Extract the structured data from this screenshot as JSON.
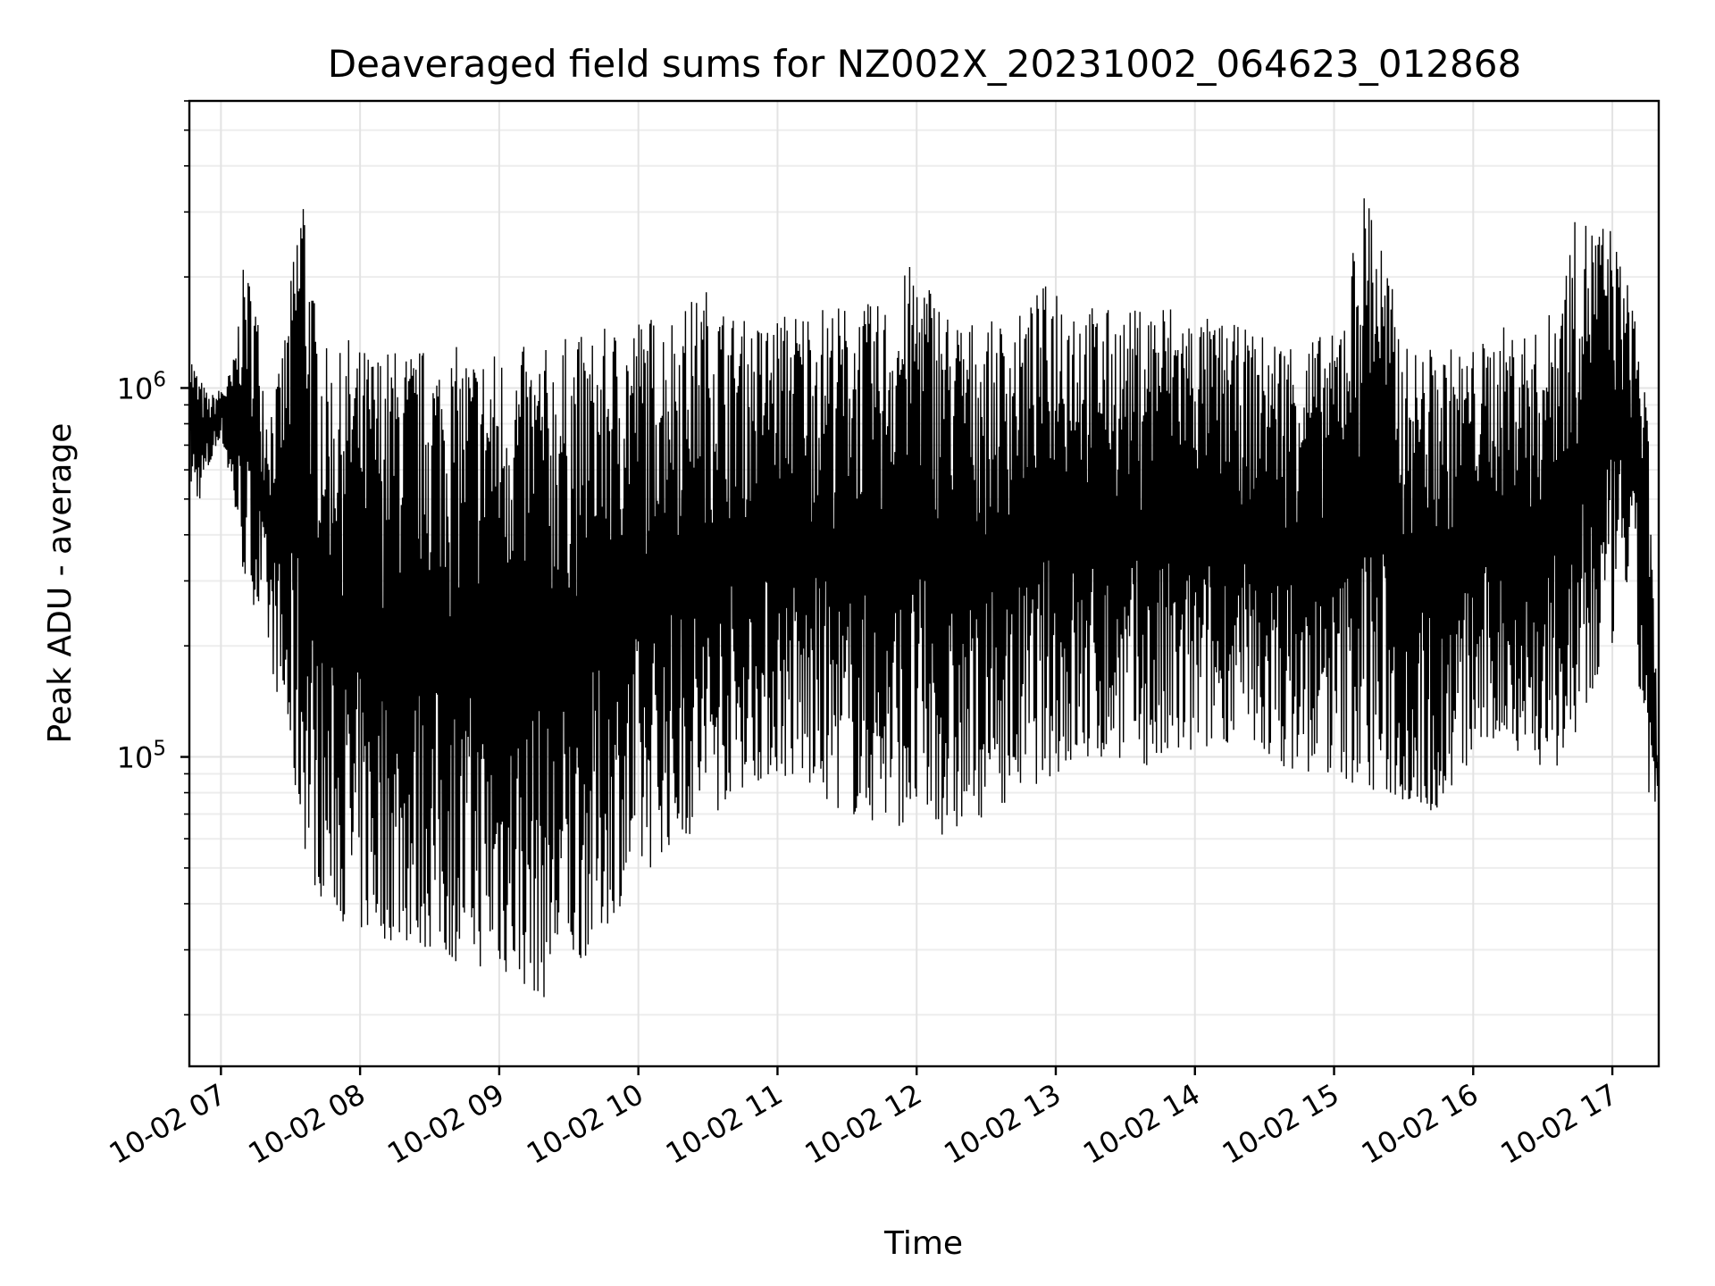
{
  "chart_data": {
    "type": "line",
    "title": "Deaveraged field sums for NZ002X_20231002_064623_012868",
    "xlabel": "Time",
    "ylabel": "Peak ADU - average",
    "y_scale": "log",
    "ylim": [
      14500,
      6000000
    ],
    "xlim": [
      "2023-10-02T06:46:23",
      "2023-10-02T17:20:00"
    ],
    "x_ticks": [
      "10-02 07",
      "10-02 08",
      "10-02 09",
      "10-02 10",
      "10-02 11",
      "10-02 12",
      "10-02 13",
      "10-02 14",
      "10-02 15",
      "10-02 16",
      "10-02 17"
    ],
    "y_ticks": [
      {
        "value": 100000,
        "base": "10",
        "exp": "5"
      },
      {
        "value": 1000000,
        "base": "10",
        "exp": "6"
      }
    ],
    "grid": true,
    "legend": "none",
    "series_color": "#000000",
    "series": [
      {
        "x": [
          "2023-10-02T06:46:23",
          "2023-10-02T06:50:00",
          "2023-10-02T06:55:00",
          "2023-10-02T07:00:00",
          "2023-10-02T07:05:00",
          "2023-10-02T07:10:00",
          "2023-10-02T07:15:00",
          "2023-10-02T07:20:00",
          "2023-10-02T07:25:00",
          "2023-10-02T07:30:00",
          "2023-10-02T07:35:00",
          "2023-10-02T07:40:00",
          "2023-10-02T07:45:00",
          "2023-10-02T07:50:00",
          "2023-10-02T07:55:00",
          "2023-10-02T08:00:00",
          "2023-10-02T08:10:00",
          "2023-10-02T08:20:00",
          "2023-10-02T08:30:00",
          "2023-10-02T08:40:00",
          "2023-10-02T08:50:00",
          "2023-10-02T09:00:00",
          "2023-10-02T09:10:00",
          "2023-10-02T09:20:00",
          "2023-10-02T09:30:00",
          "2023-10-02T09:40:00",
          "2023-10-02T09:50:00",
          "2023-10-02T10:00:00",
          "2023-10-02T10:10:00",
          "2023-10-02T10:20:00",
          "2023-10-02T10:30:00",
          "2023-10-02T10:40:00",
          "2023-10-02T10:50:00",
          "2023-10-02T11:00:00",
          "2023-10-02T11:15:00",
          "2023-10-02T11:30:00",
          "2023-10-02T11:45:00",
          "2023-10-02T12:00:00",
          "2023-10-02T12:15:00",
          "2023-10-02T12:30:00",
          "2023-10-02T12:45:00",
          "2023-10-02T13:00:00",
          "2023-10-02T13:15:00",
          "2023-10-02T13:30:00",
          "2023-10-02T13:45:00",
          "2023-10-02T14:00:00",
          "2023-10-02T14:15:00",
          "2023-10-02T14:30:00",
          "2023-10-02T14:45:00",
          "2023-10-02T15:00:00",
          "2023-10-02T15:15:00",
          "2023-10-02T15:30:00",
          "2023-10-02T15:45:00",
          "2023-10-02T16:00:00",
          "2023-10-02T16:15:00",
          "2023-10-02T16:30:00",
          "2023-10-02T16:45:00",
          "2023-10-02T17:00:00",
          "2023-10-02T17:05:00",
          "2023-10-02T17:10:00",
          "2023-10-02T17:15:00",
          "2023-10-02T17:20:00"
        ],
        "hi": [
          1300000,
          1100000,
          950000,
          1000000,
          1150000,
          2200000,
          1800000,
          900000,
          1100000,
          1900000,
          4500000,
          1800000,
          1300000,
          1200000,
          1400000,
          1300000,
          1300000,
          1300000,
          1300000,
          1300000,
          1300000,
          1300000,
          1300000,
          1300000,
          1400000,
          1400000,
          1500000,
          1600000,
          1600000,
          1700000,
          1900000,
          1600000,
          1500000,
          1600000,
          1700000,
          1700000,
          1700000,
          2300000,
          1600000,
          1500000,
          1600000,
          2100000,
          1700000,
          1600000,
          1800000,
          1600000,
          1500000,
          1400000,
          1400000,
          1400000,
          4000000,
          1300000,
          1300000,
          1300000,
          1500000,
          1400000,
          3000000,
          2800000,
          2000000,
          1800000,
          900000,
          100000
        ],
        "lo": [
          550000,
          480000,
          600000,
          750000,
          500000,
          300000,
          250000,
          200000,
          140000,
          90000,
          60000,
          45000,
          40000,
          38000,
          34000,
          33000,
          32000,
          31000,
          30000,
          28000,
          27000,
          26000,
          24000,
          22000,
          26000,
          30000,
          38000,
          45000,
          55000,
          60000,
          65000,
          80000,
          85000,
          90000,
          80000,
          70000,
          65000,
          65000,
          60000,
          70000,
          80000,
          90000,
          95000,
          100000,
          90000,
          100000,
          110000,
          100000,
          90000,
          90000,
          80000,
          75000,
          70000,
          100000,
          110000,
          90000,
          100000,
          200000,
          300000,
          200000,
          80000,
          62000
        ]
      }
    ]
  }
}
